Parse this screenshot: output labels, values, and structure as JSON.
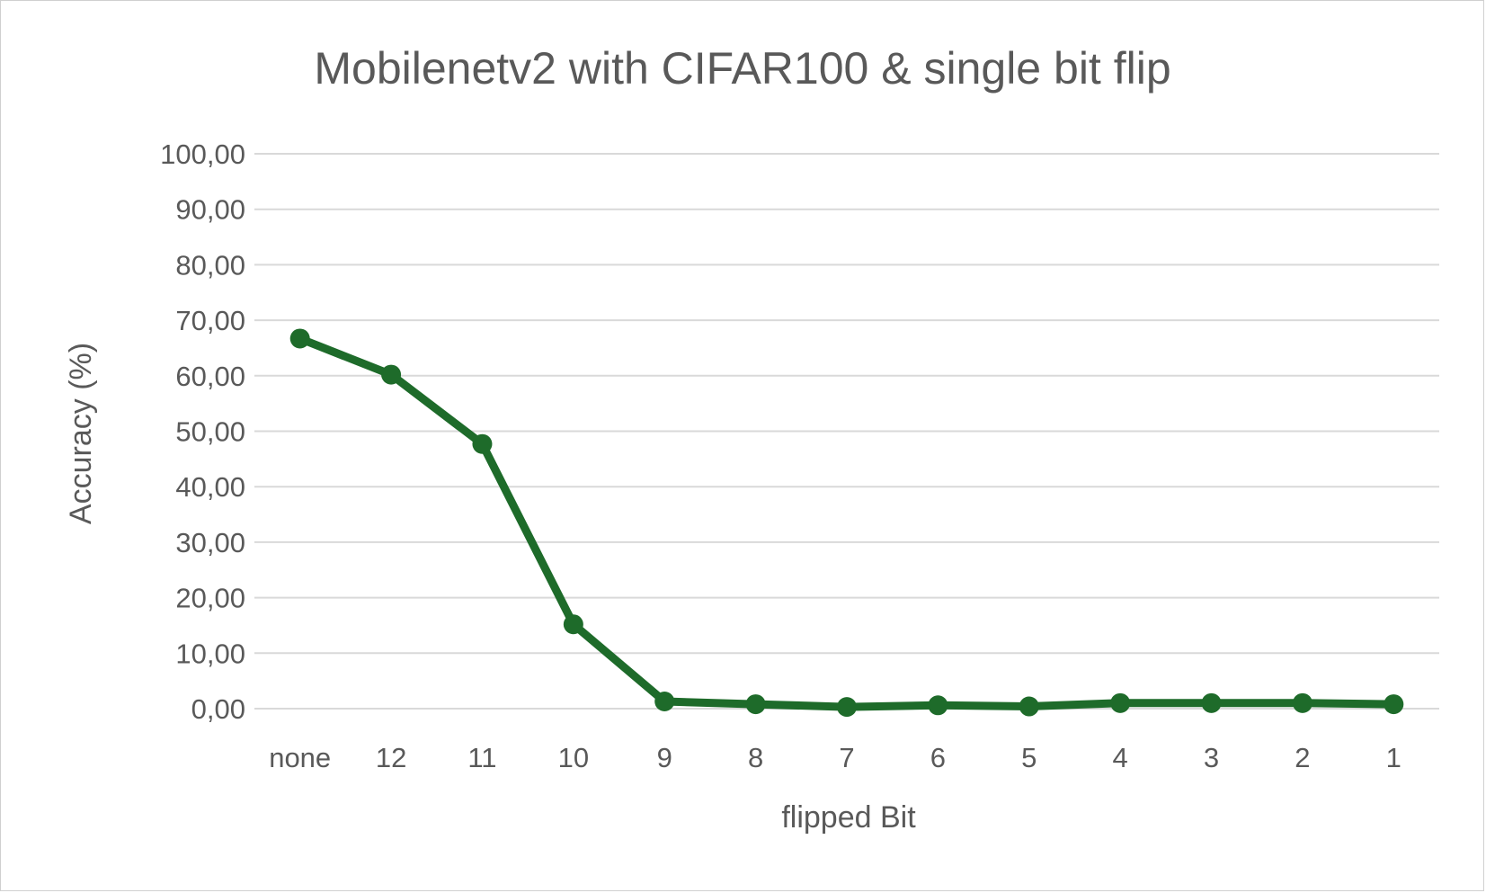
{
  "chart_data": {
    "type": "line",
    "title": "Mobilenetv2 with CIFAR100 & single bit flip",
    "xlabel": "flipped Bit",
    "ylabel": "Accuracy (%)",
    "categories": [
      "none",
      "12",
      "11",
      "10",
      "9",
      "8",
      "7",
      "6",
      "5",
      "4",
      "3",
      "2",
      "1"
    ],
    "series": [
      {
        "values": [
          66.7,
          60.2,
          47.7,
          15.2,
          1.3,
          0.8,
          0.3,
          0.6,
          0.4,
          1.0,
          1.0,
          1.0,
          0.8
        ]
      }
    ],
    "ylim": [
      0,
      100
    ],
    "yticks": [
      "0,00",
      "10,00",
      "20,00",
      "30,00",
      "40,00",
      "50,00",
      "60,00",
      "70,00",
      "80,00",
      "90,00",
      "100,00"
    ],
    "grid": true,
    "legend": "none",
    "colors": {
      "series": "#1e6b2a",
      "grid": "#d9d9d9",
      "text": "#595959"
    }
  }
}
